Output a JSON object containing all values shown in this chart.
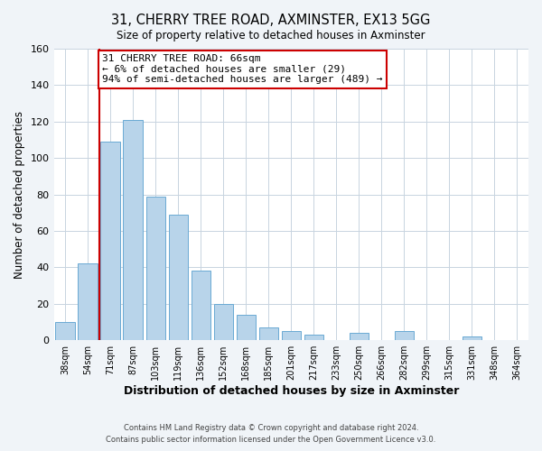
{
  "title": "31, CHERRY TREE ROAD, AXMINSTER, EX13 5GG",
  "subtitle": "Size of property relative to detached houses in Axminster",
  "xlabel": "Distribution of detached houses by size in Axminster",
  "ylabel": "Number of detached properties",
  "bar_labels": [
    "38sqm",
    "54sqm",
    "71sqm",
    "87sqm",
    "103sqm",
    "119sqm",
    "136sqm",
    "152sqm",
    "168sqm",
    "185sqm",
    "201sqm",
    "217sqm",
    "233sqm",
    "250sqm",
    "266sqm",
    "282sqm",
    "299sqm",
    "315sqm",
    "331sqm",
    "348sqm",
    "364sqm"
  ],
  "bar_heights": [
    10,
    42,
    109,
    121,
    79,
    69,
    38,
    20,
    14,
    7,
    5,
    3,
    0,
    4,
    0,
    5,
    0,
    0,
    2,
    0,
    0
  ],
  "bar_color": "#b8d4ea",
  "bar_edge_color": "#6aaad4",
  "ylim": [
    0,
    160
  ],
  "yticks": [
    0,
    20,
    40,
    60,
    80,
    100,
    120,
    140,
    160
  ],
  "property_line_color": "#cc0000",
  "annotation_line1": "31 CHERRY TREE ROAD: 66sqm",
  "annotation_line2": "← 6% of detached houses are smaller (29)",
  "annotation_line3": "94% of semi-detached houses are larger (489) →",
  "annotation_box_color": "#ffffff",
  "annotation_box_edge": "#cc0000",
  "footer_line1": "Contains HM Land Registry data © Crown copyright and database right 2024.",
  "footer_line2": "Contains public sector information licensed under the Open Government Licence v3.0.",
  "background_color": "#f0f4f8",
  "plot_background_color": "#ffffff",
  "grid_color": "#c8d4e0"
}
